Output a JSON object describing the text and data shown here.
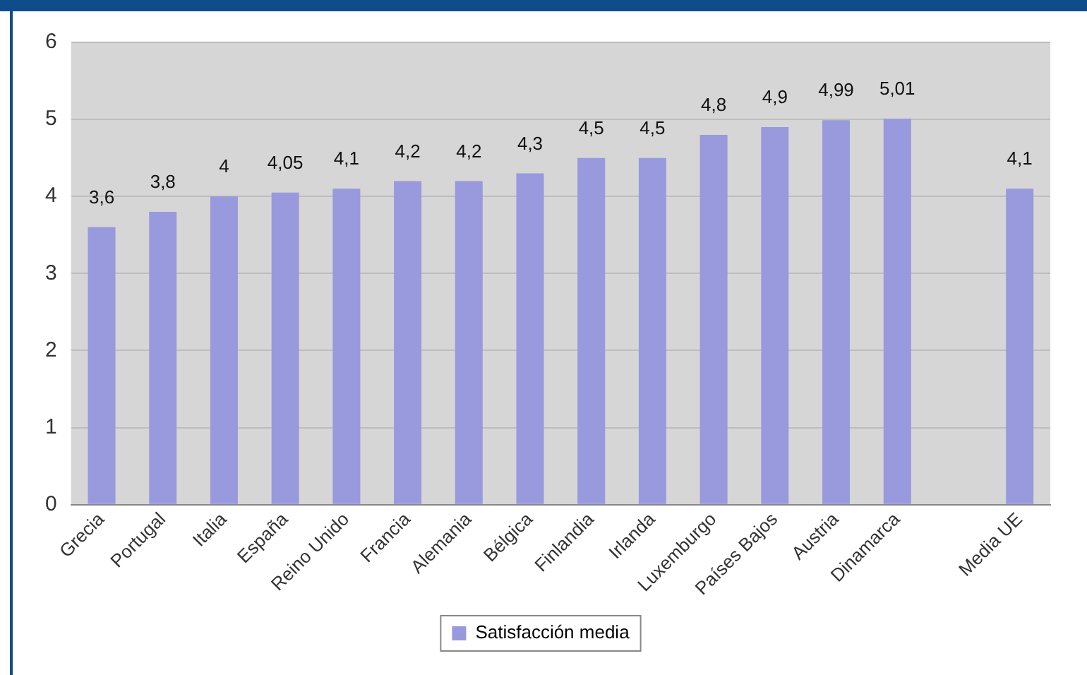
{
  "chart_data": {
    "type": "bar",
    "categories": [
      "Grecia",
      "Portugal",
      "Italia",
      "España",
      "Reino Unido",
      "Francia",
      "Alemania",
      "Bélgica",
      "Finlandia",
      "Irlanda",
      "Luxemburgo",
      "Países Bajos",
      "Austria",
      "Dinamarca",
      null,
      "Media UE"
    ],
    "series": [
      {
        "name": "Satisfacción media",
        "color": "#9999dd",
        "values": [
          3.6,
          3.8,
          4,
          4.05,
          4.1,
          4.2,
          4.2,
          4.3,
          4.5,
          4.5,
          4.8,
          4.9,
          4.99,
          5.01,
          null,
          4.1
        ],
        "value_labels": [
          "3,6",
          "3,8",
          "4",
          "4,05",
          "4,1",
          "4,2",
          "4,2",
          "4,3",
          "4,5",
          "4,5",
          "4,8",
          "4,9",
          "4,99",
          "5,01",
          null,
          "4,1"
        ]
      }
    ],
    "ylim": [
      0,
      6
    ],
    "yticks": [
      0,
      1,
      2,
      3,
      4,
      5,
      6
    ],
    "grid": "y",
    "legend": "bottom"
  }
}
